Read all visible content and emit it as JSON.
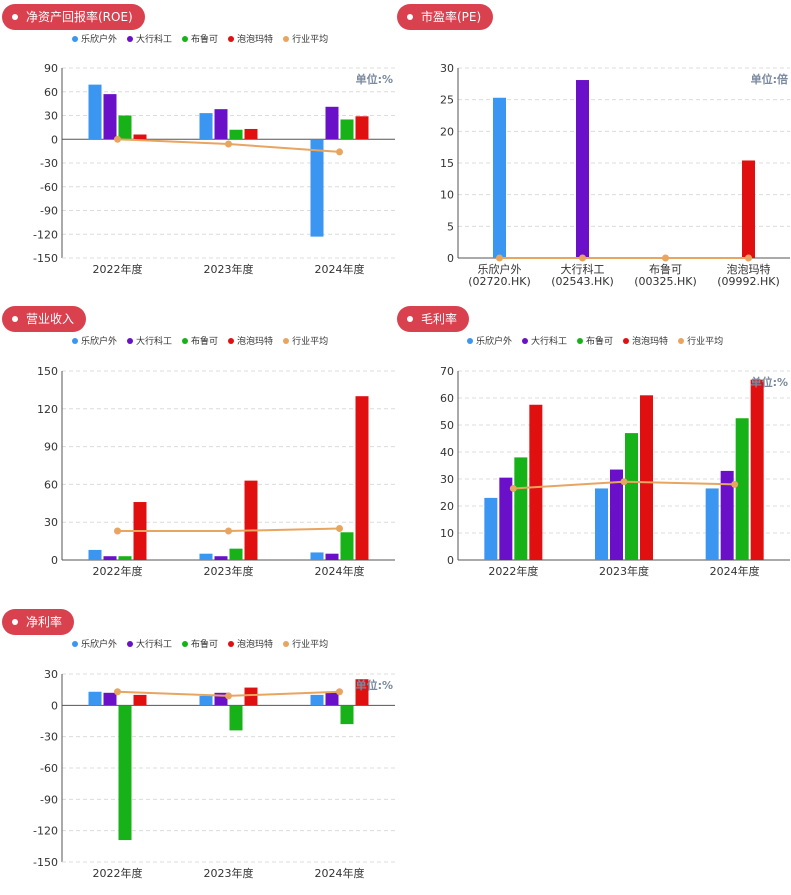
{
  "colors": {
    "pill": "#d9414f",
    "s0": "#3a96f0",
    "s1": "#6a10c8",
    "s2": "#17b217",
    "s3": "#e01010",
    "avg": "#e8a560",
    "grid": "#dcdcdc",
    "axis": "#555555"
  },
  "legend": [
    "乐欣户外",
    "大行科工",
    "布鲁可",
    "泡泡玛特",
    "行业平均"
  ],
  "unit_percent": "单位:%",
  "unit_times": "单位:倍",
  "chart_data": [
    {
      "id": "roe",
      "title": "净资产回报率(ROE)",
      "type": "bar",
      "categories": [
        "2022年度",
        "2023年度",
        "2024年度"
      ],
      "ylim": [
        -150,
        90
      ],
      "yticks": [
        90,
        60,
        30,
        0,
        -30,
        -60,
        -90,
        -120,
        -150
      ],
      "series": [
        {
          "name": "乐欣户外",
          "values": [
            69,
            33,
            -123
          ]
        },
        {
          "name": "大行科工",
          "values": [
            57,
            38,
            41
          ]
        },
        {
          "name": "布鲁可",
          "values": [
            30,
            12,
            25
          ]
        },
        {
          "name": "泡泡玛特",
          "values": [
            6,
            13,
            29
          ]
        }
      ],
      "average": {
        "name": "行业平均",
        "values": [
          0,
          -6,
          -16
        ]
      }
    },
    {
      "id": "pe",
      "title": "市盈率(PE)",
      "type": "bar",
      "categories": [
        "乐欣户外\n(02720.HK)",
        "大行科工\n(02543.HK)",
        "布鲁可\n(00325.HK)",
        "泡泡玛特\n(09992.HK)"
      ],
      "ylim": [
        0,
        30
      ],
      "yticks": [
        30,
        25,
        20,
        15,
        10,
        5,
        0
      ],
      "values": [
        25.3,
        28.1,
        0,
        15.4
      ],
      "average": {
        "name": "行业平均",
        "values": [
          0,
          0,
          0,
          0
        ]
      }
    },
    {
      "id": "revenue",
      "title": "营业收入",
      "type": "bar",
      "categories": [
        "2022年度",
        "2023年度",
        "2024年度"
      ],
      "ylim": [
        0,
        150
      ],
      "yticks": [
        150,
        120,
        90,
        60,
        30,
        0
      ],
      "series": [
        {
          "name": "乐欣户外",
          "values": [
            8,
            5,
            6
          ]
        },
        {
          "name": "大行科工",
          "values": [
            3,
            3,
            5
          ]
        },
        {
          "name": "布鲁可",
          "values": [
            3,
            9,
            22
          ]
        },
        {
          "name": "泡泡玛特",
          "values": [
            46,
            63,
            130
          ]
        }
      ],
      "average": {
        "name": "行业平均",
        "values": [
          23,
          23,
          25
        ]
      }
    },
    {
      "id": "gross",
      "title": "毛利率",
      "type": "bar",
      "categories": [
        "2022年度",
        "2023年度",
        "2024年度"
      ],
      "ylim": [
        0,
        70
      ],
      "yticks": [
        70,
        60,
        50,
        40,
        30,
        20,
        10,
        0
      ],
      "series": [
        {
          "name": "乐欣户外",
          "values": [
            23,
            26.5,
            26.5
          ]
        },
        {
          "name": "大行科工",
          "values": [
            30.5,
            33.5,
            33
          ]
        },
        {
          "name": "布鲁可",
          "values": [
            38,
            47,
            52.5
          ]
        },
        {
          "name": "泡泡玛特",
          "values": [
            57.5,
            61,
            66.8
          ]
        }
      ],
      "average": {
        "name": "行业平均",
        "values": [
          26.5,
          29,
          28
        ]
      }
    },
    {
      "id": "net",
      "title": "净利率",
      "type": "bar",
      "categories": [
        "2022年度",
        "2023年度",
        "2024年度"
      ],
      "ylim": [
        -150,
        30
      ],
      "yticks": [
        30,
        0,
        -30,
        -60,
        -90,
        -120,
        -150
      ],
      "series": [
        {
          "name": "乐欣户外",
          "values": [
            13,
            9,
            10
          ]
        },
        {
          "name": "大行科工",
          "values": [
            12,
            12,
            13
          ]
        },
        {
          "name": "布鲁可",
          "values": [
            -129,
            -24,
            -18
          ]
        },
        {
          "name": "泡泡玛特",
          "values": [
            10,
            17,
            25
          ]
        }
      ],
      "average": {
        "name": "行业平均",
        "values": [
          13,
          9,
          13
        ]
      }
    }
  ]
}
